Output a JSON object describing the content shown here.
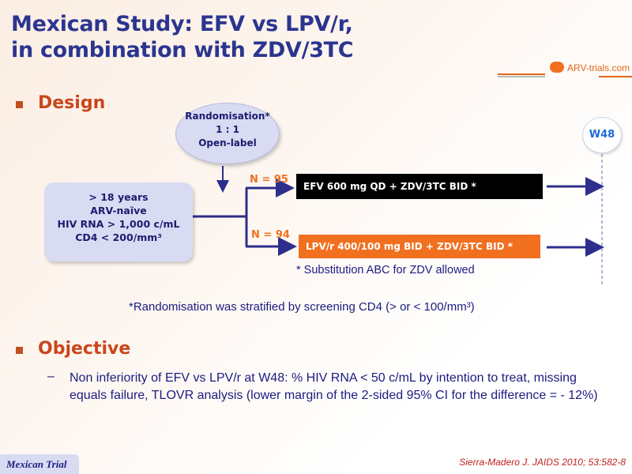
{
  "title": {
    "line1": "Mexican Study: EFV vs LPV/r,",
    "line2": "in combination with ZDV/3TC"
  },
  "logo": {
    "text": "ARV-trials.com"
  },
  "design": {
    "heading": "Design",
    "randomisation": {
      "line1": "Randomisation*",
      "line2": "1 : 1",
      "line3": "Open-label"
    },
    "criteria": {
      "line1": "> 18 years",
      "line2": "ARV-naïve",
      "line3": "HIV RNA > 1,000 c/mL",
      "line4": "CD4 < 200/mm³"
    },
    "arms": [
      {
        "n": "N = 95",
        "label": "EFV 600 mg QD + ZDV/3TC BID *"
      },
      {
        "n": "N = 94",
        "label": "LPV/r 400/100 mg BID + ZDV/3TC BID *"
      }
    ],
    "timepoint": "W48",
    "footnote": "* Substitution ABC for ZDV allowed",
    "stratification": "*Randomisation was stratified by screening CD4 (> or < 100/mm³)"
  },
  "objective": {
    "heading": "Objective",
    "text": "Non inferiority of EFV vs LPV/r at W48: % HIV RNA < 50 c/mL by intention to treat, missing equals failure, TLOVR analysis (lower margin of the 2-sided 95% CI for the difference =  - 12%)"
  },
  "footer": {
    "tag": "Mexican Trial",
    "citation": "Sierra-Madero J. JAIDS 2010; 53:582-8"
  },
  "colors": {
    "title": "#2b3590",
    "heading": "#c9461c",
    "arm1": "#000000",
    "arm2": "#f07020",
    "text": "#1c1c80"
  }
}
